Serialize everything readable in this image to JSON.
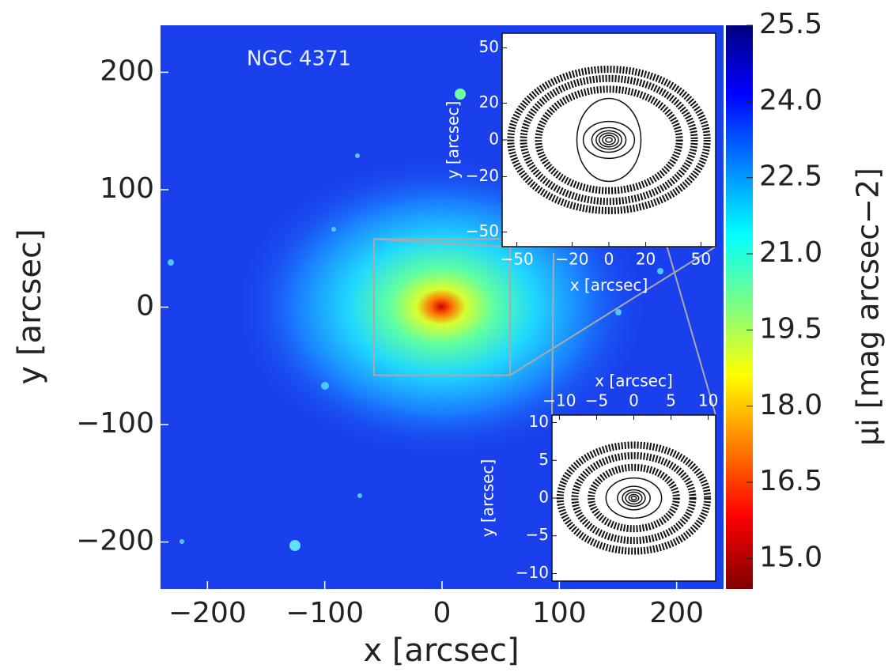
{
  "chart_data": {
    "type": "image",
    "annotation": "NGC 4371",
    "xlabel": "x [arcsec]",
    "ylabel": "y [arcsec]",
    "xlim": [
      -240,
      240
    ],
    "ylim": [
      -240,
      240
    ],
    "xticks": [
      {
        "value": -200,
        "label": "−200"
      },
      {
        "value": -100,
        "label": "−100"
      },
      0,
      100,
      200
    ],
    "yticks": [
      {
        "value": -200,
        "label": "−200"
      },
      {
        "value": -100,
        "label": "−100"
      },
      0,
      100,
      200
    ],
    "colorbar": {
      "label": "μi [mag arcsec−2]",
      "clim": [
        14.4,
        25.5
      ],
      "ticks": [
        25.5,
        {
          "value": 24,
          "label": "24.0"
        },
        22.5,
        {
          "value": 21,
          "label": "21.0"
        },
        19.5,
        {
          "value": 18,
          "label": "18.0"
        },
        16.5,
        {
          "value": 15,
          "label": "15.0"
        }
      ]
    },
    "insets": [
      {
        "xlabel": "x [arcsec]",
        "ylabel": "y [arcsec]",
        "xlim": [
          -58,
          58
        ],
        "ylim": [
          -58,
          58
        ],
        "xticks": [
          {
            "value": -50,
            "label": "−50"
          },
          {
            "value": -20,
            "label": "−20"
          },
          0,
          20,
          50
        ],
        "yticks": [
          {
            "value": -50,
            "label": "−50"
          },
          {
            "value": -20,
            "label": "−20"
          },
          0,
          20,
          50
        ]
      },
      {
        "xlabel": "x [arcsec]",
        "ylabel": "y [arcsec]",
        "xlim": [
          -11,
          11
        ],
        "ylim": [
          -11,
          11
        ],
        "xticks": [
          {
            "value": -10,
            "label": "−10"
          },
          {
            "value": -5,
            "label": "−5"
          },
          0,
          5,
          10
        ],
        "yticks": [
          {
            "value": -10,
            "label": "−10"
          },
          {
            "value": -5,
            "label": "−5"
          },
          0,
          5,
          10
        ]
      }
    ]
  }
}
